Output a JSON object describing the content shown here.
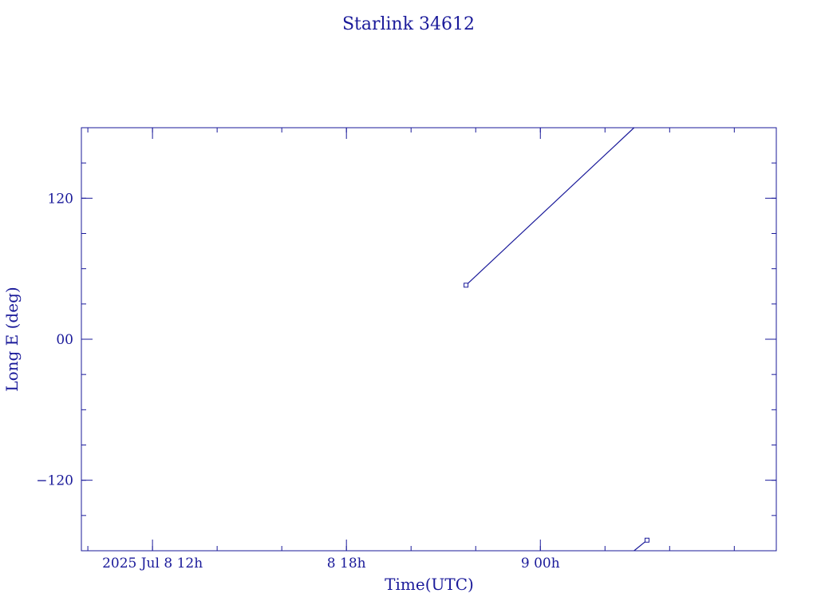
{
  "chart_data": {
    "type": "line",
    "title": "Starlink 34612",
    "xlabel": "Time(UTC)",
    "ylabel": "Long E (deg)",
    "x_axis": {
      "unit": "hours since 2025 Jul 8 00h UTC",
      "range": [
        9.8,
        31.3
      ],
      "major_ticks": [
        {
          "value": 12,
          "label": "2025  Jul  8  12h"
        },
        {
          "value": 18,
          "label": "8  18h"
        },
        {
          "value": 24,
          "label": "9  00h"
        }
      ],
      "minor_step": 2
    },
    "y_axis": {
      "range": [
        -180,
        180
      ],
      "major_ticks": [
        {
          "value": 120,
          "label": "120"
        },
        {
          "value": 0,
          "label": "00"
        },
        {
          "value": -120,
          "label": "−120"
        }
      ],
      "minor_step": 30
    },
    "grid": false,
    "series": [
      {
        "segments": [
          [
            {
              "x": 21.7,
              "y": 46
            },
            {
              "x": 26.9,
              "y": 180
            }
          ],
          [
            {
              "x": 26.9,
              "y": -180
            },
            {
              "x": 27.3,
              "y": -171
            }
          ]
        ],
        "markers": [
          {
            "x": 21.7,
            "y": 46
          },
          {
            "x": 27.3,
            "y": -171
          }
        ]
      }
    ],
    "colors": {
      "ink": "#1a1a9a"
    }
  }
}
